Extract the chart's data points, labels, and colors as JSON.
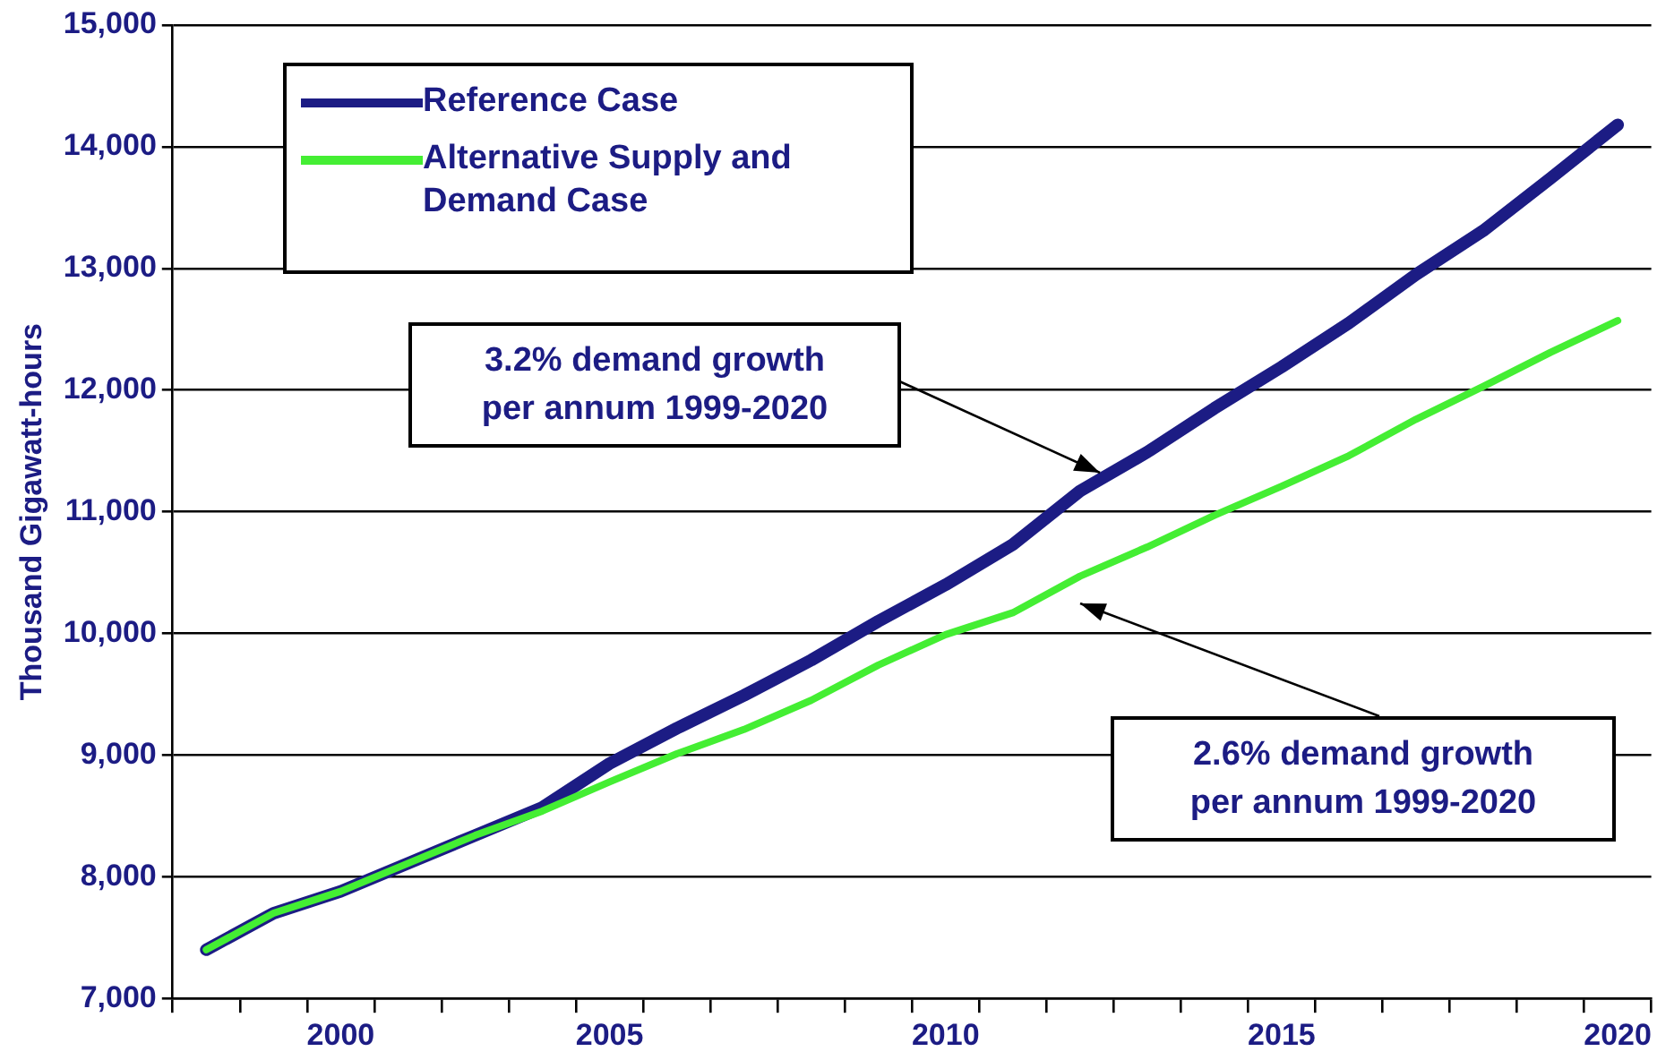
{
  "chart_data": {
    "type": "line",
    "ylabel": "Thousand Gigawatt-hours",
    "categories": [
      null,
      null,
      "2000",
      null,
      null,
      null,
      "2005",
      null,
      null,
      null,
      null,
      "2010",
      null,
      null,
      null,
      null,
      "2015",
      null,
      null,
      null,
      null,
      "2020"
    ],
    "series": [
      {
        "name": "Reference Case",
        "color": "#1c1c84",
        "values": [
          7400,
          7700,
          7880,
          8110,
          8340,
          8570,
          8930,
          9220,
          9490,
          9780,
          10100,
          10400,
          10730,
          11170,
          11490,
          11850,
          12190,
          12550,
          12950,
          13310,
          13740,
          14180
        ]
      },
      {
        "name": "Alternative Supply and Demand Case",
        "color": "#44ee33",
        "values": [
          7400,
          7700,
          7880,
          8110,
          8340,
          8540,
          8780,
          9010,
          9210,
          9450,
          9740,
          9990,
          10170,
          10470,
          10710,
          10970,
          11210,
          11460,
          11760,
          12030,
          12310,
          12570
        ]
      }
    ],
    "ylim": [
      7000,
      15000
    ],
    "yticks": [
      {
        "value": 7000,
        "label": "7,000"
      },
      {
        "value": 8000,
        "label": "8,000"
      },
      {
        "value": 9000,
        "label": "9,000"
      },
      {
        "value": 10000,
        "label": "10,000"
      },
      {
        "value": 11000,
        "label": "11,000"
      },
      {
        "value": 12000,
        "label": "12,000"
      },
      {
        "value": 13000,
        "label": "13,000"
      },
      {
        "value": 14000,
        "label": "14,000"
      },
      {
        "value": 15000,
        "label": "15,000"
      }
    ],
    "grid": "y",
    "legend": "top left",
    "marker": "none",
    "line_style": "solid",
    "annotations": [
      "3.2% demand growth per annum 1999-2020",
      "2.6% demand growth per annum 1999-2020"
    ]
  }
}
